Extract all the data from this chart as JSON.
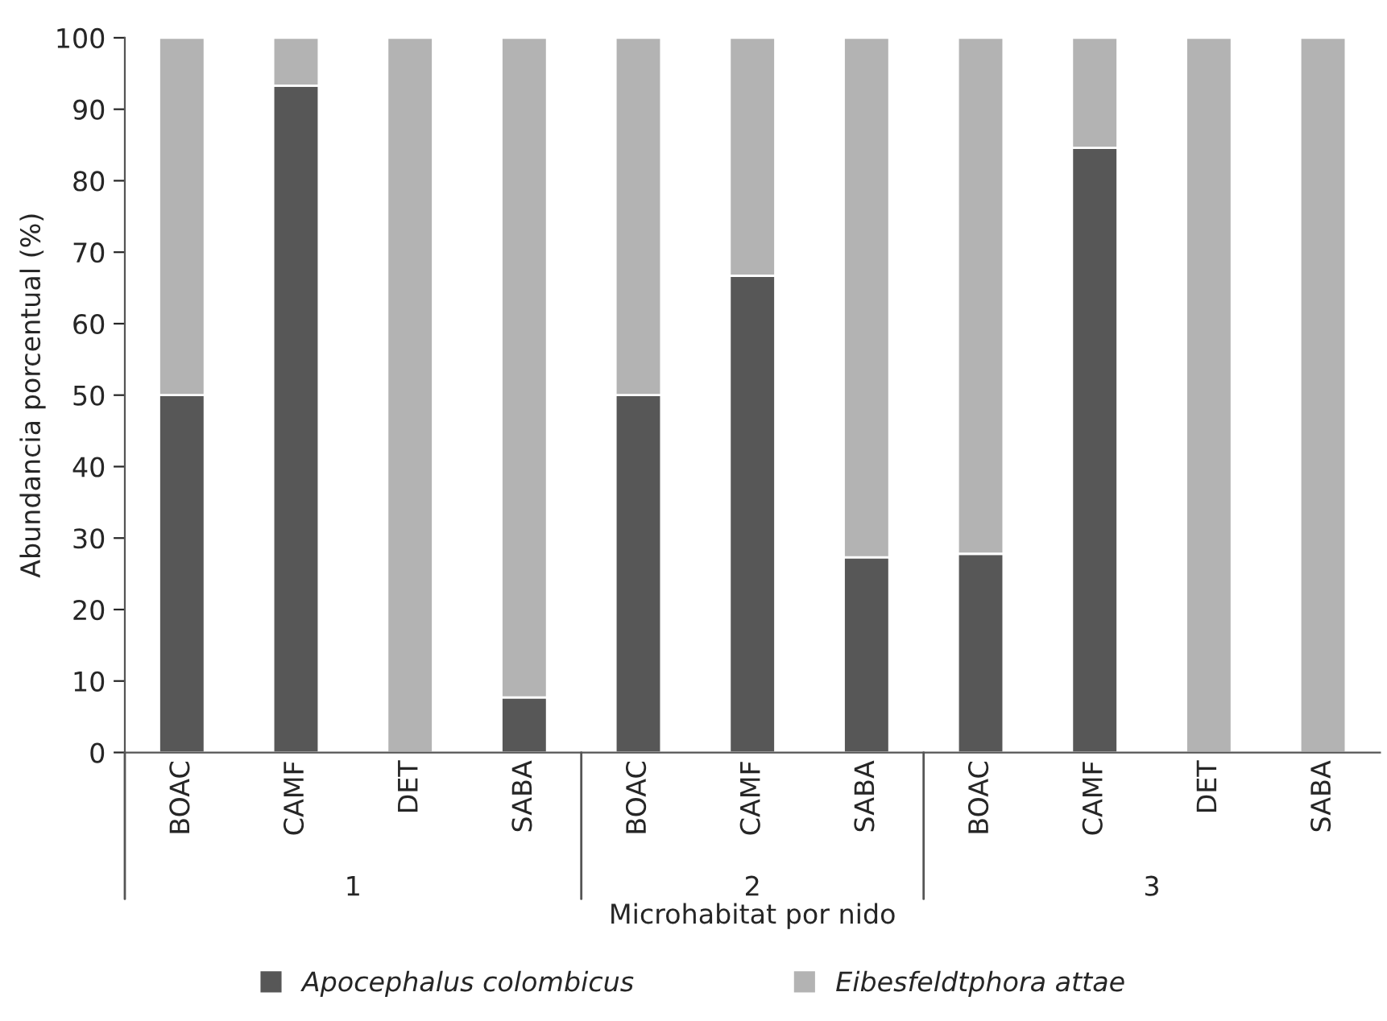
{
  "chart_data": {
    "type": "bar",
    "stacked": true,
    "categories": [
      "BOAC",
      "CAMF",
      "DET",
      "SABA",
      "BOAC",
      "CAMF",
      "SABA",
      "BOAC",
      "CAMF",
      "DET",
      "SABA"
    ],
    "series": [
      {
        "name": "Apocephalus colombicus",
        "color": "#575757",
        "values": [
          50,
          93.3,
          0,
          7.7,
          50,
          66.7,
          27.3,
          27.8,
          84.6,
          0,
          0
        ]
      },
      {
        "name": "Eibesfeldtphora attae",
        "color": "#b3b3b3",
        "values": [
          50,
          6.7,
          100,
          92.3,
          50,
          33.3,
          72.7,
          72.2,
          15.4,
          100,
          100
        ]
      }
    ],
    "xlabel": "Microhabitat por nido",
    "ylabel": "Abundancia porcentual (%)",
    "annotations": [
      "1",
      "2",
      "3"
    ],
    "ylim": [
      0,
      100
    ],
    "yticks": [
      0,
      10,
      20,
      30,
      40,
      50,
      60,
      70,
      80,
      90,
      100
    ],
    "grid": false,
    "legend": "bottom"
  }
}
